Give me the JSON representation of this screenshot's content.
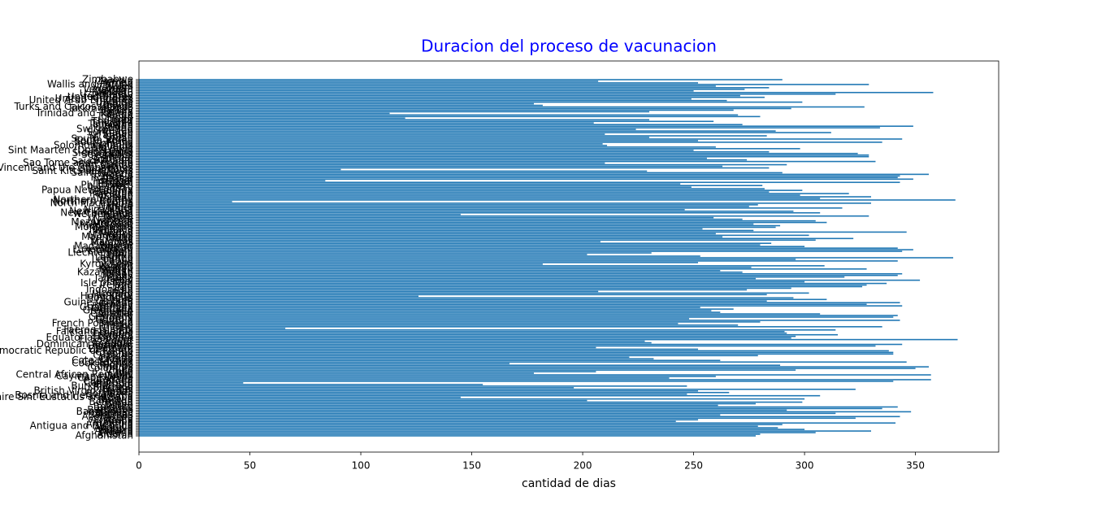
{
  "chart_data": {
    "type": "barh",
    "title": "Duracion del proceso de vacunacion",
    "xlabel": "cantidad de dias",
    "color": "#1f77b4",
    "categories": [
      "Afghanistan",
      "Albania",
      "Algeria",
      "Andorra",
      "Angola",
      "Anguilla",
      "Antigua and Barbuda",
      "Argentina",
      "Armenia",
      "Aruba",
      "Australia",
      "Austria",
      "Azerbaijan",
      "Bahamas",
      "Bahrain",
      "Bangladesh",
      "Barbados",
      "Belarus",
      "Belgium",
      "Belize",
      "Benin",
      "Bermuda",
      "Bhutan",
      "Bolivia",
      "Bonaire Sint Eustatius and Saba",
      "Bosnia and Herzegovina",
      "Botswana",
      "Brazil",
      "British Virgin Islands",
      "Brunei",
      "Bulgaria",
      "Burkina Faso",
      "Burundi",
      "Cambodia",
      "Cameroon",
      "Canada",
      "Cape Verde",
      "Cayman Islands",
      "Central African Republic",
      "Chad",
      "Chile",
      "China",
      "Colombia",
      "Comoros",
      "Congo",
      "Cook Islands",
      "Costa Rica",
      "Cote d'Ivoire",
      "Croatia",
      "Cuba",
      "Curacao",
      "Cyprus",
      "Czechia",
      "Democratic Republic of Congo",
      "Denmark",
      "Djibouti",
      "Dominica",
      "Dominican Republic",
      "Ecuador",
      "Egypt",
      "El Salvador",
      "Equatorial Guinea",
      "Estonia",
      "Eswatini",
      "Ethiopia",
      "Falkland Islands",
      "Faeroe Islands",
      "Fiji",
      "Finland",
      "France",
      "French Polynesia",
      "Gabon",
      "Gambia",
      "Georgia",
      "Germany",
      "Ghana",
      "Gibraltar",
      "Greece",
      "Greenland",
      "Grenada",
      "Guatemala",
      "Guernsey",
      "Guinea",
      "Guinea-Bissau",
      "Guyana",
      "Haiti",
      "Honduras",
      "Hong Kong",
      "Hungary",
      "Iceland",
      "India",
      "Indonesia",
      "Iran",
      "Iraq",
      "Ireland",
      "Isle of Man",
      "Israel",
      "Italy",
      "Jamaica",
      "Japan",
      "Jersey",
      "Jordan",
      "Kazakhstan",
      "Kenya",
      "Kiribati",
      "Kosovo",
      "Kuwait",
      "Kyrgyzstan",
      "Laos",
      "Latvia",
      "Lebanon",
      "Lesotho",
      "Liberia",
      "Libya",
      "Liechtenstein",
      "Lithuania",
      "Luxembourg",
      "Macao",
      "Madagascar",
      "Malawi",
      "Malaysia",
      "Maldives",
      "Mali",
      "Malta",
      "Mauritania",
      "Mauritius",
      "Mexico",
      "Moldova",
      "Monaco",
      "Mongolia",
      "Montenegro",
      "Montserrat",
      "Morocco",
      "Mozambique",
      "Myanmar",
      "Namibia",
      "Nauru",
      "Nepal",
      "Netherlands",
      "New Caledonia",
      "New Zealand",
      "Nicaragua",
      "Niger",
      "Nigeria",
      "Niue",
      "North Macedonia",
      "Northern Cyprus",
      "Northern Ireland",
      "Norway",
      "Oman",
      "Pakistan",
      "Palestine",
      "Panama",
      "Papua New Guinea",
      "Paraguay",
      "Peru",
      "Philippines",
      "Pitcairn",
      "Poland",
      "Portugal",
      "Qatar",
      "Romania",
      "Russia",
      "Rwanda",
      "Saint Helena",
      "Saint Kitts and Nevis",
      "Saint Lucia",
      "Saint Vincent and the Grenadines",
      "Samoa",
      "San Marino",
      "Sao Tome and Principe",
      "Saudi Arabia",
      "Scotland",
      "Senegal",
      "Serbia",
      "Seychelles",
      "Sierra Leone",
      "Singapore",
      "Sint Maarten (Dutch part)",
      "Slovakia",
      "Slovenia",
      "Solomon Islands",
      "Somalia",
      "South Africa",
      "South Korea",
      "South Sudan",
      "Spain",
      "Sri Lanka",
      "Sudan",
      "Suriname",
      "Sweden",
      "Switzerland",
      "Syria",
      "Taiwan",
      "Tajikistan",
      "Tanzania",
      "Thailand",
      "Timor",
      "Togo",
      "Tokelau",
      "Tonga",
      "Trinidad and Tobago",
      "Tunisia",
      "Turkey",
      "Turkmenistan",
      "Turks and Caicos Islands",
      "Tuvalu",
      "Uganda",
      "Ukraine",
      "United Arab Emirates",
      "United Kingdom",
      "United States",
      "Uruguay",
      "Uzbekistan",
      "Vanuatu",
      "Vatican",
      "Venezuela",
      "Vietnam",
      "Wales",
      "Wallis and Futuna",
      "Yemen",
      "Zambia",
      "Zimbabwe"
    ],
    "values": [
      278,
      280,
      305,
      330,
      300,
      288,
      279,
      290,
      341,
      242,
      252,
      323,
      343,
      262,
      314,
      348,
      292,
      335,
      342,
      261,
      278,
      299,
      202,
      300,
      145,
      307,
      247,
      266,
      252,
      323,
      196,
      247,
      155,
      47,
      340,
      357,
      239,
      260,
      357,
      178,
      206,
      296,
      350,
      356,
      289,
      167,
      346,
      262,
      232,
      221,
      279,
      340,
      340,
      338,
      252,
      206,
      332,
      344,
      231,
      228,
      369,
      294,
      296,
      315,
      292,
      291,
      314,
      66,
      335,
      270,
      243,
      280,
      343,
      248,
      340,
      342,
      307,
      262,
      258,
      268,
      253,
      344,
      328,
      343,
      283,
      310,
      295,
      126,
      283,
      302,
      207,
      274,
      294,
      326,
      328,
      337,
      300,
      352,
      278,
      318,
      342,
      344,
      272,
      262,
      328,
      276,
      309,
      182,
      252,
      342,
      296,
      367,
      253,
      202,
      231,
      344,
      349,
      342,
      300,
      280,
      285,
      208,
      305,
      322,
      263,
      302,
      260,
      346,
      277,
      254,
      287,
      289,
      277,
      310,
      305,
      272,
      259,
      329,
      145,
      307,
      295,
      246,
      317,
      275,
      279,
      330,
      42,
      368,
      307,
      330,
      298,
      320,
      284,
      299,
      282,
      249,
      281,
      244,
      343,
      84,
      349,
      342,
      343,
      356,
      290,
      229,
      91,
      284,
      263,
      292,
      210,
      332,
      274,
      256,
      329,
      329,
      324,
      284,
      250,
      298,
      260,
      211,
      209,
      335,
      252,
      344,
      230,
      283,
      210,
      312,
      287,
      224,
      334,
      349,
      272,
      205,
      259,
      230,
      120,
      280,
      270,
      113,
      230,
      268,
      294,
      327,
      182,
      178,
      299,
      265,
      249,
      282,
      271,
      314,
      358,
      250,
      273,
      284,
      260,
      329,
      252,
      207,
      290
    ],
    "xlim": [
      0,
      387.5
    ],
    "xticks": [
      0,
      50,
      100,
      150,
      200,
      250,
      300,
      350
    ]
  }
}
